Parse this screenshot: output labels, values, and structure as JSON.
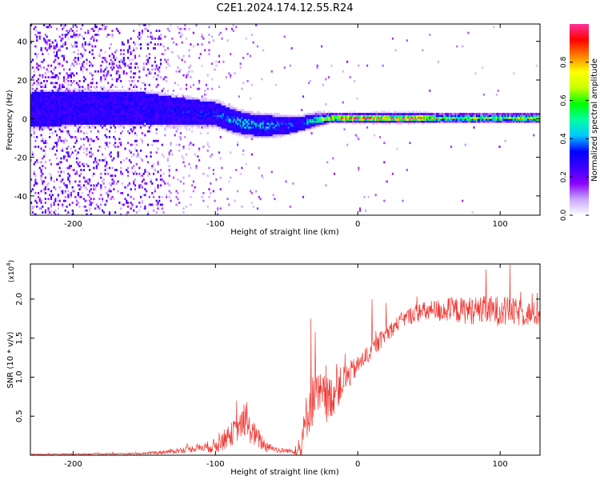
{
  "title": "C2E1.2024.174.12.55.R24",
  "chart_data": [
    {
      "type": "heatmap",
      "xlabel": "Height of straight line (km)",
      "ylabel": "Frequency (Hz)",
      "xlim": [
        -230,
        128
      ],
      "ylim": [
        -50,
        49
      ],
      "xticks": [
        -200,
        -100,
        0,
        100
      ],
      "yticks": [
        -40,
        -20,
        0,
        20,
        40
      ],
      "colorbar": {
        "label": "Normalized spectral amplitude",
        "range": [
          0,
          1
        ],
        "ticks": [
          0.0,
          0.2,
          0.4,
          0.6,
          0.8
        ],
        "tick_labels": [
          "0.0",
          "0.2",
          "0.4",
          "0.6",
          "0.8"
        ],
        "colormap": [
          "#ffffff",
          "#c9a6ff",
          "#8a00ff",
          "#3a00ff",
          "#0000ff",
          "#00c8ff",
          "#00ffa0",
          "#00ff00",
          "#c8ff00",
          "#ffff00",
          "#ff8000",
          "#ff0000",
          "#ff3399"
        ]
      },
      "band_center": [
        {
          "x": -230,
          "f": 4
        },
        {
          "x": -200,
          "f": 5
        },
        {
          "x": -150,
          "f": 5
        },
        {
          "x": -120,
          "f": 3
        },
        {
          "x": -100,
          "f": 2
        },
        {
          "x": -90,
          "f": -1
        },
        {
          "x": -80,
          "f": -3
        },
        {
          "x": -70,
          "f": -4
        },
        {
          "x": -60,
          "f": -4
        },
        {
          "x": -50,
          "f": -4
        },
        {
          "x": -40,
          "f": -3
        },
        {
          "x": -30,
          "f": -1
        },
        {
          "x": -20,
          "f": 0
        },
        {
          "x": 128,
          "f": 0
        }
      ],
      "band_halfwidth": [
        {
          "x": -230,
          "w": 9
        },
        {
          "x": -150,
          "w": 8
        },
        {
          "x": -100,
          "w": 6
        },
        {
          "x": -60,
          "w": 5
        },
        {
          "x": -30,
          "w": 3
        },
        {
          "x": -20,
          "w": 2
        },
        {
          "x": 128,
          "w": 2
        }
      ],
      "peak_amplitude": [
        {
          "x": -230,
          "a": 0.25
        },
        {
          "x": -150,
          "a": 0.3
        },
        {
          "x": -100,
          "a": 0.35
        },
        {
          "x": -80,
          "a": 0.5
        },
        {
          "x": -40,
          "a": 0.35
        },
        {
          "x": -25,
          "a": 0.75
        },
        {
          "x": 0,
          "a": 1.0
        },
        {
          "x": 45,
          "a": 1.0
        },
        {
          "x": 60,
          "a": 0.7
        },
        {
          "x": 128,
          "a": 0.75
        }
      ],
      "background_scatter_amplitude": [
        {
          "x": -230,
          "a": 0.35
        },
        {
          "x": -150,
          "a": 0.25
        },
        {
          "x": -100,
          "a": 0.05
        },
        {
          "x": -60,
          "a": 0.02
        },
        {
          "x": 128,
          "a": 0.0
        }
      ]
    },
    {
      "type": "line",
      "color": "#ef3b36",
      "xlabel": "Height of straight line (km)",
      "ylabel": "SNR (10 * v/v)",
      "ylabel_multiplier": "(x10",
      "ylabel_multiplier_exponent": "4",
      "ylabel_multiplier_close": ")",
      "xlim": [
        -230,
        128
      ],
      "ylim": [
        0,
        2.45
      ],
      "xticks": [
        -200,
        -100,
        0,
        100
      ],
      "yticks": [
        0.5,
        1.0,
        1.5,
        2.0
      ],
      "ytick_labels": [
        "0.5",
        "1.0",
        "1.5",
        "2.0"
      ],
      "envelope": [
        {
          "x": -230,
          "y": 0.01
        },
        {
          "x": -150,
          "y": 0.02
        },
        {
          "x": -130,
          "y": 0.05
        },
        {
          "x": -100,
          "y": 0.12
        },
        {
          "x": -90,
          "y": 0.25
        },
        {
          "x": -80,
          "y": 0.42
        },
        {
          "x": -72,
          "y": 0.25
        },
        {
          "x": -65,
          "y": 0.12
        },
        {
          "x": -55,
          "y": 0.06
        },
        {
          "x": -40,
          "y": 0.05
        },
        {
          "x": -35,
          "y": 0.6
        },
        {
          "x": -30,
          "y": 0.75
        },
        {
          "x": -20,
          "y": 0.72
        },
        {
          "x": -10,
          "y": 0.95
        },
        {
          "x": 0,
          "y": 1.15
        },
        {
          "x": 10,
          "y": 1.35
        },
        {
          "x": 20,
          "y": 1.55
        },
        {
          "x": 30,
          "y": 1.72
        },
        {
          "x": 40,
          "y": 1.82
        },
        {
          "x": 60,
          "y": 1.86
        },
        {
          "x": 100,
          "y": 1.85
        },
        {
          "x": 128,
          "y": 1.8
        }
      ],
      "noise_level": [
        {
          "x": -230,
          "n": 0.008
        },
        {
          "x": -150,
          "n": 0.012
        },
        {
          "x": -110,
          "n": 0.05
        },
        {
          "x": -90,
          "n": 0.15
        },
        {
          "x": -75,
          "n": 0.18
        },
        {
          "x": -60,
          "n": 0.04
        },
        {
          "x": -45,
          "n": 0.03
        },
        {
          "x": -35,
          "n": 0.35
        },
        {
          "x": -20,
          "n": 0.3
        },
        {
          "x": 0,
          "n": 0.12
        },
        {
          "x": 30,
          "n": 0.1
        },
        {
          "x": 60,
          "n": 0.16
        },
        {
          "x": 100,
          "n": 0.2
        },
        {
          "x": 128,
          "n": 0.15
        }
      ],
      "spikes": [
        {
          "x": -85,
          "y": 0.7
        },
        {
          "x": -78,
          "y": 0.68
        },
        {
          "x": -33,
          "y": 1.75
        },
        {
          "x": -30,
          "y": 1.58
        },
        {
          "x": -9,
          "y": 1.3
        },
        {
          "x": 10,
          "y": 2.0
        },
        {
          "x": 20,
          "y": 1.95
        },
        {
          "x": 90,
          "y": 2.38
        },
        {
          "x": 107,
          "y": 2.44
        }
      ]
    }
  ]
}
